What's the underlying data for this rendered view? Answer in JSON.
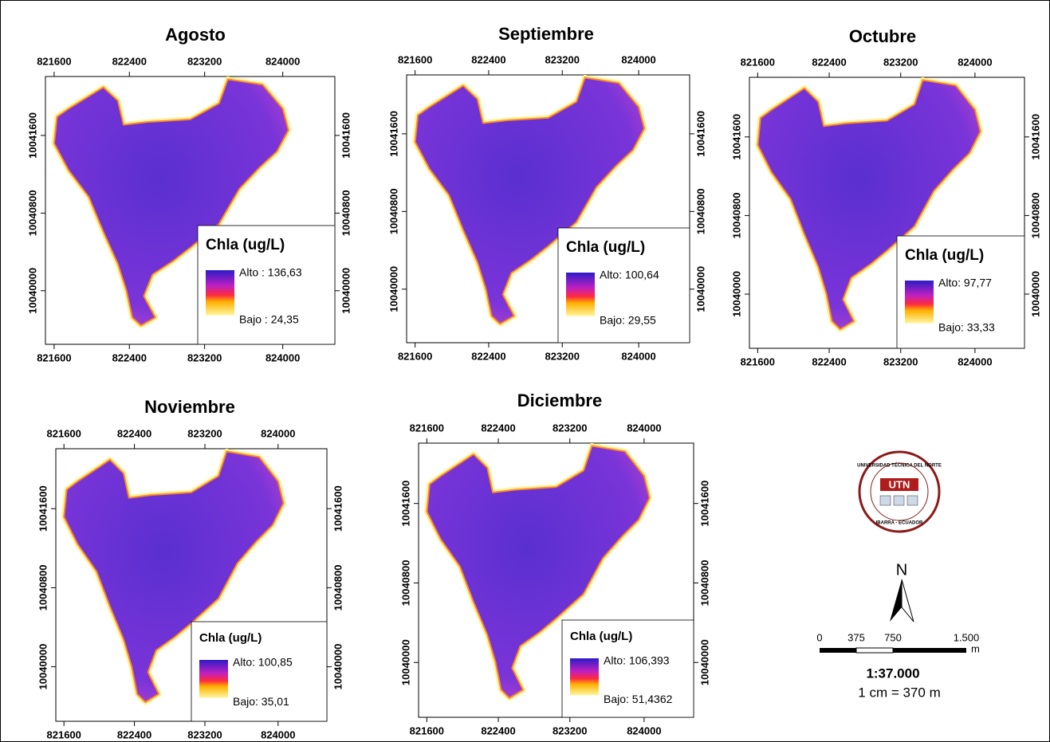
{
  "panels": [
    {
      "title": "Agosto",
      "x_ticks": [
        821600,
        822400,
        823200,
        824000
      ],
      "y_ticks": [
        10040000,
        10040800,
        10041600
      ],
      "legend": {
        "title": "Chla (ug/L)",
        "high": "Alto : 136,63",
        "low": "Bajo : 24,35"
      }
    },
    {
      "title": "Septiembre",
      "x_ticks": [
        821600,
        822400,
        823200,
        824000
      ],
      "y_ticks": [
        10040000,
        10040800,
        10041600
      ],
      "legend": {
        "title": "Chla (ug/L)",
        "high": "Alto: 100,64",
        "low": "Bajo: 29,55"
      }
    },
    {
      "title": "Octubre",
      "x_ticks": [
        821600,
        822400,
        823200,
        824000
      ],
      "y_ticks": [
        10040000,
        10040800,
        10041600
      ],
      "legend": {
        "title": "Chla (ug/L)",
        "high": "Alto: 97,77",
        "low": "Bajo: 33,33"
      }
    },
    {
      "title": "Noviembre",
      "x_ticks": [
        821600,
        822400,
        823200,
        824000
      ],
      "y_ticks": [
        10040000,
        10040800,
        10041600
      ],
      "legend": {
        "title": "Chla (ug/L)",
        "high": "Alto: 100,85",
        "low": "Bajo: 35,01"
      }
    },
    {
      "title": "Diciembre",
      "x_ticks": [
        821600,
        822400,
        823200,
        824000
      ],
      "y_ticks": [
        10040000,
        10040800,
        10041600
      ],
      "legend": {
        "title": "Chla (ug/L)",
        "high": "Alto: 106,393",
        "low": "Bajo: 51,4362"
      }
    }
  ],
  "logo": {
    "top_text": "UNIVERSIDAD TÉCNICA DEL NORTE",
    "acronym": "UTN",
    "bottom_text": "IBARRA - ECUADOR"
  },
  "north_arrow": "N",
  "scale_bar": {
    "labels": [
      "0",
      "375",
      "750",
      "1.500"
    ],
    "unit": "m",
    "ratio": "1:37.000",
    "equivalence": "1 cm = 370 m"
  }
}
